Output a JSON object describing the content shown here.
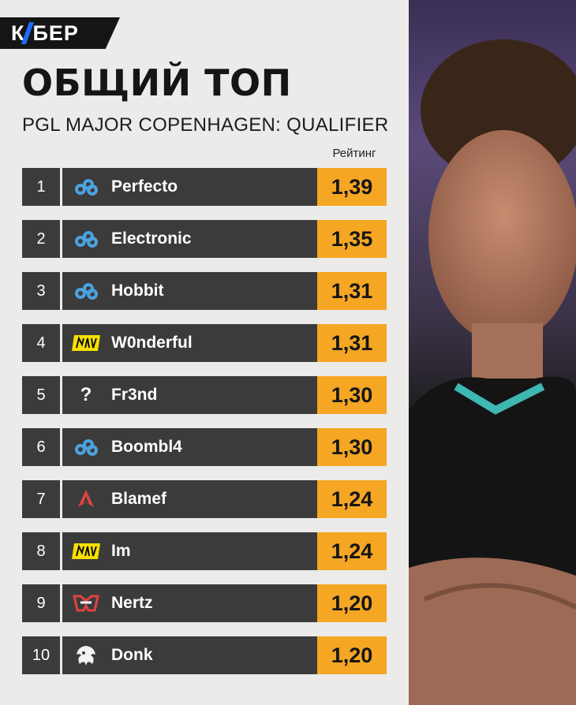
{
  "brand": {
    "logo_text_1": "К",
    "logo_text_2": "БЕР"
  },
  "header": {
    "title": "ОБЩИЙ ТОП",
    "subtitle": "PGL MAJOR COPENHAGEN: QUALIFIER",
    "rating_label": "Рейтинг"
  },
  "colors": {
    "accent": "#f5a623",
    "row_bg": "#3b3b3b",
    "brand_blue": "#1e6cff"
  },
  "players": [
    {
      "rank": "1",
      "name": "Perfecto",
      "team_icon": "cloud9-icon",
      "rating": "1,39"
    },
    {
      "rank": "2",
      "name": "Electronic",
      "team_icon": "cloud9-icon",
      "rating": "1,35"
    },
    {
      "rank": "3",
      "name": "Hobbit",
      "team_icon": "cloud9-icon",
      "rating": "1,31"
    },
    {
      "rank": "4",
      "name": "W0nderful",
      "team_icon": "navi-icon",
      "rating": "1,31"
    },
    {
      "rank": "5",
      "name": "Fr3nd",
      "team_icon": "unknown-team-icon",
      "team_icon_text": "?",
      "rating": "1,30"
    },
    {
      "rank": "6",
      "name": "Boombl4",
      "team_icon": "cloud9-icon",
      "rating": "1,30"
    },
    {
      "rank": "7",
      "name": "Blamef",
      "team_icon": "astralis-icon",
      "rating": "1,24"
    },
    {
      "rank": "8",
      "name": "Im",
      "team_icon": "navi-icon",
      "rating": "1,24"
    },
    {
      "rank": "9",
      "name": "Nertz",
      "team_icon": "heroic-icon",
      "rating": "1,20"
    },
    {
      "rank": "10",
      "name": "Donk",
      "team_icon": "spirit-icon",
      "rating": "1,20"
    }
  ]
}
